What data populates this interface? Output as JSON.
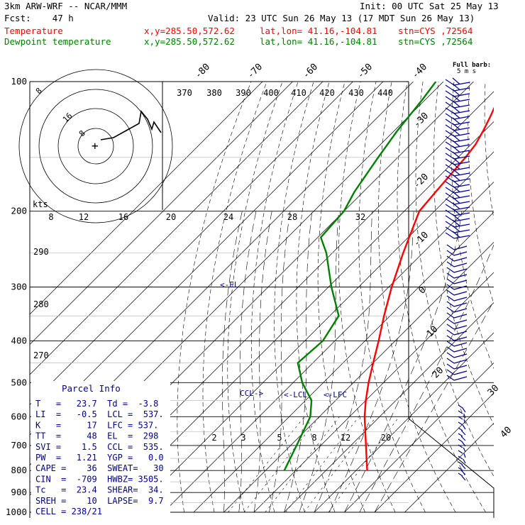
{
  "header": {
    "model": "3km ARW-WRF -- NCAR/MMM",
    "init": "Init: 00 UTC Sat 25 May 13",
    "fcst": "Fcst:    47 h",
    "valid": "Valid: 23 UTC Sun 26 May 13 (17 MDT Sun 26 May 13)"
  },
  "legend": [
    {
      "name": "Temperature",
      "xy": "x,y=285.50,572.62",
      "latlon": "lat,lon= 41.16,-104.81",
      "stn": "stn=CYS ,72564",
      "color": "#ff0000"
    },
    {
      "name": "Dewpoint temperature",
      "xy": "x,y=285.50,572.62",
      "latlon": "lat,lon= 41.16,-104.81",
      "stn": "stn=CYS ,72564",
      "color": "#008000"
    }
  ],
  "barb_label": {
    "line1": "Full barb:",
    "line2": "5 m s"
  },
  "theta_labels": [
    "370",
    "380",
    "390",
    "400",
    "410",
    "420",
    "430",
    "440"
  ],
  "temp_top_labels": [
    "-80",
    "-70",
    "-60",
    "-50",
    "-40"
  ],
  "temp_right_labels": [
    "-30",
    "-20",
    "-10",
    "0",
    "10",
    "20",
    "30",
    "40"
  ],
  "hodo_speed_labels": [
    "kts",
    "8",
    "12",
    "16",
    "20",
    "24",
    "28",
    "32"
  ],
  "thetae_labels": [
    "290",
    "280",
    "270"
  ],
  "mixing_ratio_labels": [
    "2",
    "3",
    "5",
    "8",
    "12",
    "20"
  ],
  "hodo_ring_labels": [
    "8",
    "16"
  ],
  "markers": {
    "el": "<-EL",
    "lcl": "<-LCL",
    "lfc": "<-LFC",
    "ccl": "CCL->",
    "parcel": "+"
  },
  "parcel_info": {
    "title": "Parcel Info",
    "rows": [
      "T   =   23.7  Td =  -3.8",
      "LI  =   -0.5  LCL =  537.",
      "K   =     17  LFC = 537.",
      "TT  =     48  EL  =  298",
      "SVI =    1.5  CCL =  535.",
      "PW  =   1.21  YGP =   0.0",
      "CAPE =    36  SWEAT=   30",
      "CIN  =  -709  HWBZ= 3505.",
      "Tc   =  23.4  SHEAR=  34.",
      "SREH =    10  LAPSE=  9.7",
      "CELL = 238/21"
    ]
  },
  "chart_data": {
    "type": "line",
    "title": "",
    "xlabel": "",
    "ylabel": "",
    "y_scale": "log pressure (hPa)",
    "ylim": [
      1000,
      100
    ],
    "pressure_ticks": [
      100,
      200,
      300,
      400,
      500,
      600,
      700,
      800,
      900,
      1000
    ],
    "temperature_ticks": [
      -80,
      -70,
      -60,
      -50,
      -40,
      -30,
      -20,
      -10,
      0,
      10,
      20,
      30,
      40
    ],
    "series": [
      {
        "name": "Temperature",
        "color": "#ff0000",
        "points": [
          {
            "p": 800,
            "t": 23.7
          },
          {
            "p": 700,
            "t": 15.0
          },
          {
            "p": 600,
            "t": 5.0
          },
          {
            "p": 550,
            "t": 0.0
          },
          {
            "p": 500,
            "t": -5.0
          },
          {
            "p": 450,
            "t": -10.0
          },
          {
            "p": 400,
            "t": -15.5
          },
          {
            "p": 350,
            "t": -22.0
          },
          {
            "p": 300,
            "t": -29.0
          },
          {
            "p": 250,
            "t": -36.5
          },
          {
            "p": 200,
            "t": -45.0
          },
          {
            "p": 180,
            "t": -46.0
          },
          {
            "p": 160,
            "t": -47.0
          },
          {
            "p": 150,
            "t": -47.5
          },
          {
            "p": 140,
            "t": -48.5
          },
          {
            "p": 130,
            "t": -50.5
          },
          {
            "p": 120,
            "t": -53.0
          },
          {
            "p": 110,
            "t": -56.0
          },
          {
            "p": 100,
            "t": -59.0
          }
        ]
      },
      {
        "name": "Dewpoint temperature",
        "color": "#008000",
        "points": [
          {
            "p": 800,
            "t": -3.8
          },
          {
            "p": 700,
            "t": -8.0
          },
          {
            "p": 600,
            "t": -13.0
          },
          {
            "p": 550,
            "t": -18.0
          },
          {
            "p": 500,
            "t": -27.0
          },
          {
            "p": 450,
            "t": -35.0
          },
          {
            "p": 400,
            "t": -34.0
          },
          {
            "p": 350,
            "t": -37.0
          },
          {
            "p": 300,
            "t": -49.0
          },
          {
            "p": 250,
            "t": -62.0
          },
          {
            "p": 230,
            "t": -69.0
          },
          {
            "p": 200,
            "t": -70.0
          },
          {
            "p": 180,
            "t": -73.0
          },
          {
            "p": 150,
            "t": -76.5
          },
          {
            "p": 130,
            "t": -79.0
          },
          {
            "p": 110,
            "t": -81.0
          },
          {
            "p": 100,
            "t": -82.5
          }
        ]
      }
    ]
  }
}
